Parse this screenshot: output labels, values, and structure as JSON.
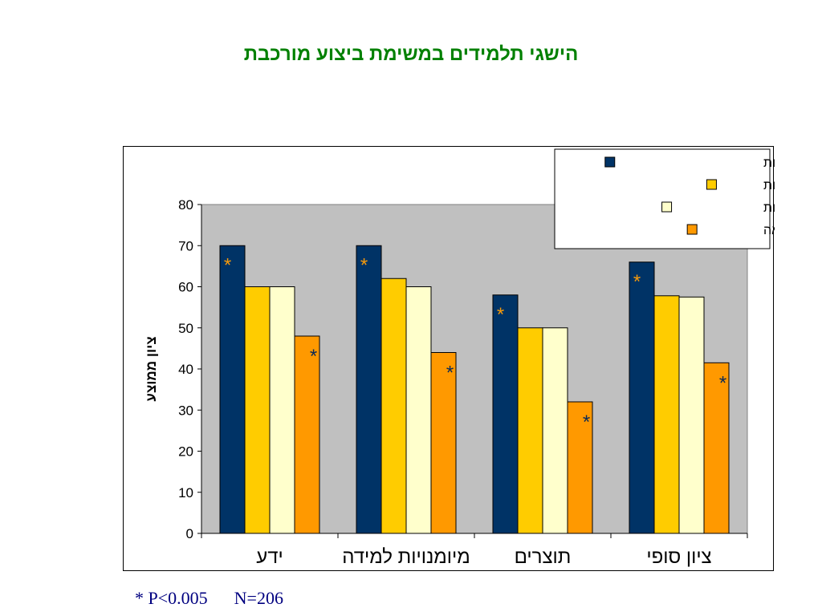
{
  "slide": {
    "title": "הישגי תלמידים במשימת ביצוע מורכבת",
    "footnote": "* P<0.005      N=206"
  },
  "colors": {
    "title": "#008000",
    "plot_bg": "#c0c0c0",
    "star_gold": "#f59a0c",
    "star_dark": "#0b2a55",
    "footnote": "#000080"
  },
  "chart_data": {
    "type": "bar",
    "ylabel": "ציון ממוצע",
    "ylim": [
      0,
      80
    ],
    "yticks": [
      0,
      10,
      20,
      30,
      40,
      50,
      60,
      70,
      80
    ],
    "grid": false,
    "legend_position": "top-right",
    "categories": [
      "ידע",
      "מיומנויות למידה",
      "תוצרים",
      "ציון סופי"
    ],
    "series": [
      {
        "name": "הוראת מיומנויות + משימות",
        "color": "#003366",
        "values": [
          70,
          70,
          58,
          66
        ],
        "significant": [
          true,
          true,
          true,
          true
        ]
      },
      {
        "name": "משימות",
        "color": "#ffcc00",
        "values": [
          60,
          62,
          50,
          57.8
        ],
        "significant": [
          false,
          false,
          false,
          false
        ]
      },
      {
        "name": "הוראת מיומנויות",
        "color": "#ffffcc",
        "values": [
          60,
          60,
          50,
          57.5
        ],
        "significant": [
          false,
          false,
          false,
          false
        ]
      },
      {
        "name": "קב' השוואה",
        "color": "#ff9900",
        "values": [
          48,
          44,
          32,
          41.5
        ],
        "significant": [
          true,
          true,
          true,
          true
        ]
      }
    ],
    "significance_marker": "*"
  }
}
